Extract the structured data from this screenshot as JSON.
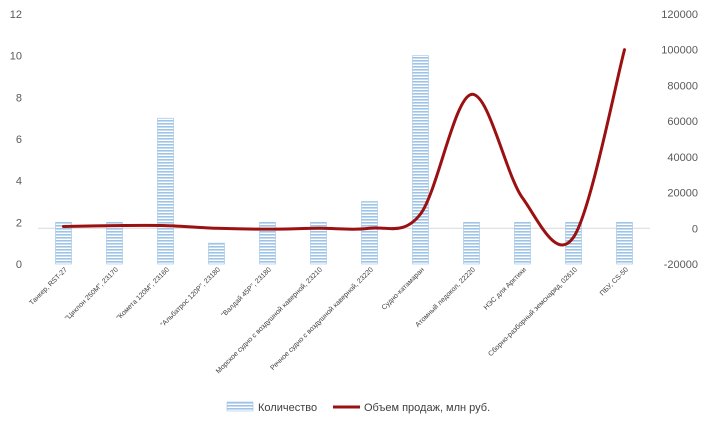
{
  "chart_data": {
    "type": "bar",
    "categories": [
      "Танкер, RST-27",
      "\"Циклон 250М\", 23170",
      "\"Комета 120М\", 23160",
      "\"Альбатрос 120Р\", 23180",
      "\"Валдай 45Р\", 23180",
      "Морское судно с воздушной каверной, 23210",
      "Речное судно с воздушной каверной, 23220",
      "Судно-катамаран",
      "Атомный ледокол, 22220",
      "НЭС для Арктики",
      "Сборно-разборный земснаряд, 02610",
      "ПБУ, CS-50"
    ],
    "series": [
      {
        "name": "Количество",
        "type": "bar",
        "axis": "left",
        "color": "#9DC3E6",
        "values": [
          2,
          2,
          7,
          1,
          2,
          2,
          3,
          10,
          2,
          2,
          2,
          2
        ]
      },
      {
        "name": "Объем продаж, млн руб.",
        "type": "line",
        "axis": "right",
        "color": "#9B1111",
        "smooth": true,
        "values": [
          1000,
          1500,
          1500,
          0,
          -500,
          0,
          0,
          8000,
          75000,
          17000,
          -5000,
          100000
        ]
      }
    ],
    "y_left": {
      "min": 0,
      "max": 12,
      "ticks": [
        0,
        2,
        4,
        6,
        8,
        10,
        12
      ]
    },
    "y_right": {
      "min": -20000,
      "max": 120000,
      "ticks": [
        -20000,
        0,
        20000,
        40000,
        60000,
        80000,
        100000,
        120000
      ]
    },
    "grid": false,
    "legend": "bottom",
    "title": "",
    "xlabel": "",
    "ylabel": ""
  }
}
